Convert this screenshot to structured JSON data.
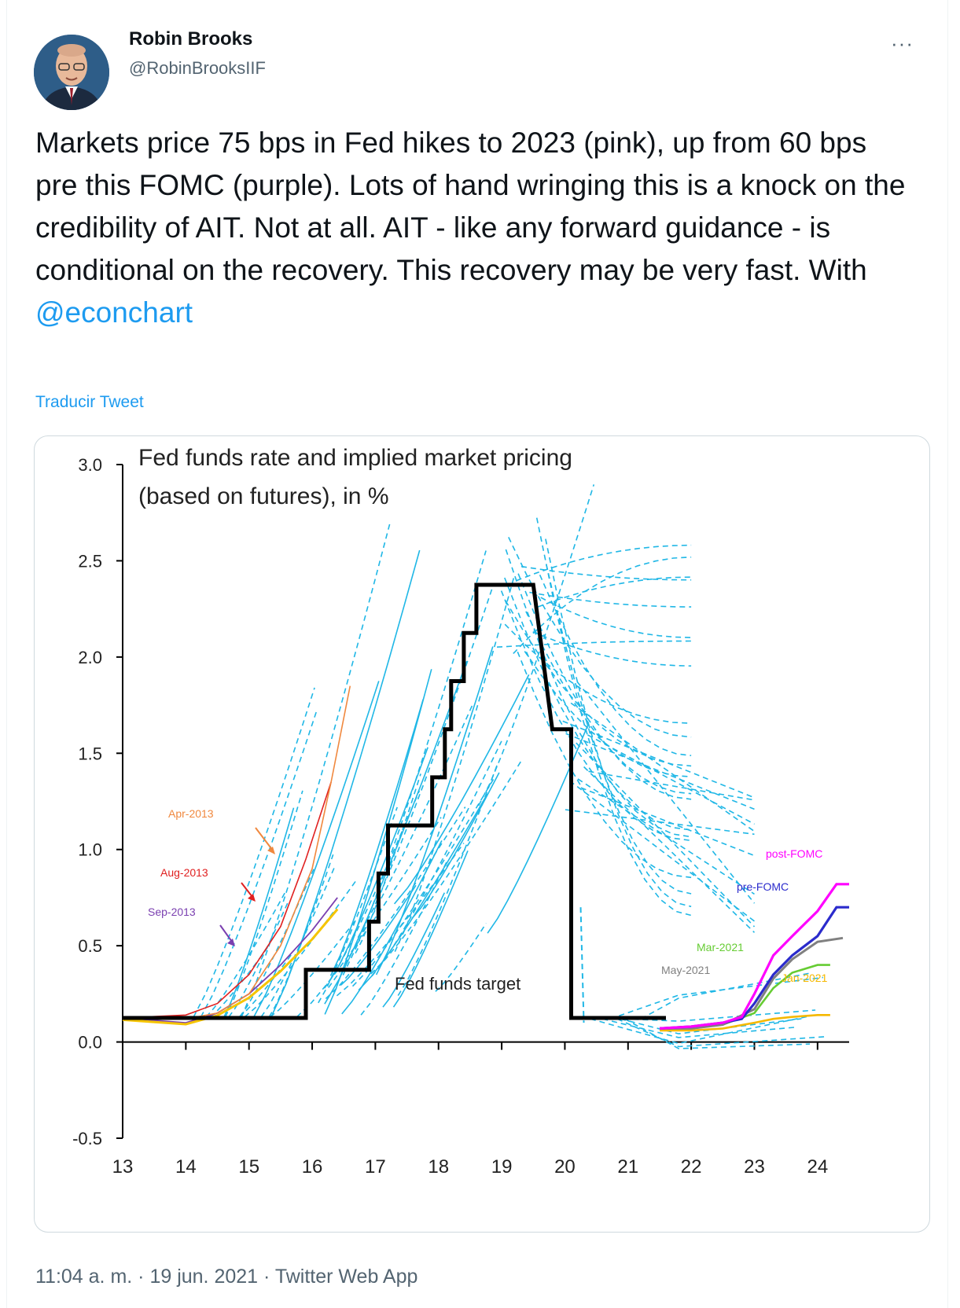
{
  "author": {
    "name": "Robin Brooks",
    "handle": "@RobinBrooksIIF"
  },
  "tweet": {
    "text": "Markets price 75 bps in Fed hikes to 2023 (pink), up from 60 bps pre this FOMC (purple). Lots of hand wringing this is a knock on the credibility of AIT. Not at all. AIT - like any forward guidance - is conditional on the recovery. This recovery may be very fast. With ",
    "mention": "@econchart",
    "translate_label": "Traducir Tweet",
    "more_label": "···"
  },
  "meta": {
    "time": "11:04 a. m.",
    "date": "19 jun. 2021",
    "separator": " · ",
    "app": "Twitter Web App"
  },
  "chart_data": {
    "type": "line",
    "title": "Fed funds rate and implied market pricing",
    "subtitle": "(based on futures), in %",
    "ylim": [
      -0.5,
      3.0
    ],
    "yticks": [
      "3.0",
      "2.5",
      "2.0",
      "1.5",
      "1.0",
      "0.5",
      "0.0",
      "-0.5"
    ],
    "ytick_values": [
      3.0,
      2.5,
      2.0,
      1.5,
      1.0,
      0.5,
      0.0,
      -0.5
    ],
    "xticks": [
      "13",
      "14",
      "15",
      "16",
      "17",
      "18",
      "19",
      "20",
      "21",
      "22",
      "23",
      "24"
    ],
    "xlim": [
      13,
      24.5
    ],
    "annotations": {
      "fed_funds_target": "Fed funds target",
      "apr2013": "Apr-2013",
      "aug2013": "Aug-2013",
      "sep2013": "Sep-2013",
      "post_fomc": "post-FOMC",
      "pre_fomc": "pre-FOMC",
      "mar2021": "Mar-2021",
      "may2021": "May-2021",
      "jan2021": "Jan-2021"
    },
    "colors": {
      "fed_funds_target": "#000000",
      "implied_paths": "#1fb7e6",
      "apr2013": "#f0883e",
      "aug2013": "#e02020",
      "sep2013": "#7a3fb0",
      "post_fomc": "#ff00ff",
      "pre_fomc": "#2b2bcc",
      "mar2021": "#66cc33",
      "may2021": "#808080",
      "jan2021": "#f5b800"
    },
    "series": [
      {
        "name": "Fed funds target",
        "x": [
          13.0,
          15.9,
          15.9,
          16.9,
          16.9,
          17.05,
          17.05,
          17.2,
          17.2,
          17.4,
          17.4,
          17.9,
          17.9,
          18.1,
          18.1,
          18.2,
          18.2,
          18.4,
          18.4,
          18.6,
          18.6,
          18.9,
          18.9,
          19.5,
          19.5,
          19.8,
          19.8,
          20.1,
          20.1,
          20.2,
          20.2,
          21.6
        ],
        "y": [
          0.125,
          0.125,
          0.375,
          0.375,
          0.625,
          0.625,
          0.875,
          0.875,
          1.125,
          1.125,
          1.125,
          1.125,
          1.375,
          1.375,
          1.625,
          1.625,
          1.875,
          1.875,
          2.125,
          2.125,
          2.375,
          2.375,
          2.375,
          2.375,
          2.375,
          1.625,
          1.625,
          1.625,
          0.125,
          0.125,
          0.125,
          0.125
        ]
      },
      {
        "name": "Apr-2013",
        "x": [
          13.0,
          14.0,
          14.5,
          15.0,
          15.5,
          16.0,
          16.3,
          16.6
        ],
        "y": [
          0.125,
          0.12,
          0.15,
          0.25,
          0.5,
          0.9,
          1.35,
          1.85
        ]
      },
      {
        "name": "Aug-2013",
        "x": [
          13.0,
          14.0,
          14.5,
          15.0,
          15.5,
          15.9,
          16.3
        ],
        "y": [
          0.125,
          0.14,
          0.2,
          0.35,
          0.6,
          0.95,
          1.35
        ]
      },
      {
        "name": "Sep-2013",
        "x": [
          13.0,
          14.0,
          14.5,
          15.0,
          15.5,
          16.0,
          16.4
        ],
        "y": [
          0.125,
          0.1,
          0.15,
          0.25,
          0.4,
          0.58,
          0.75
        ]
      },
      {
        "name": "post-FOMC",
        "x": [
          21.5,
          22.0,
          22.5,
          22.8,
          23.0,
          23.3,
          23.6,
          24.0,
          24.3,
          24.5
        ],
        "y": [
          0.07,
          0.08,
          0.1,
          0.13,
          0.25,
          0.45,
          0.55,
          0.68,
          0.82,
          0.82
        ]
      },
      {
        "name": "pre-FOMC",
        "x": [
          21.5,
          22.0,
          22.5,
          22.8,
          23.0,
          23.3,
          23.6,
          24.0,
          24.3,
          24.5
        ],
        "y": [
          0.07,
          0.08,
          0.1,
          0.12,
          0.2,
          0.35,
          0.45,
          0.55,
          0.7,
          0.7
        ]
      },
      {
        "name": "Mar-2021",
        "x": [
          21.5,
          22.0,
          22.5,
          23.0,
          23.3,
          23.6,
          24.0,
          24.2
        ],
        "y": [
          0.07,
          0.07,
          0.09,
          0.15,
          0.28,
          0.36,
          0.4,
          0.4
        ]
      },
      {
        "name": "May-2021",
        "x": [
          21.5,
          22.0,
          22.5,
          23.0,
          23.3,
          23.6,
          24.0,
          24.4
        ],
        "y": [
          0.07,
          0.07,
          0.09,
          0.17,
          0.33,
          0.43,
          0.52,
          0.54
        ]
      },
      {
        "name": "Jan-2021",
        "x": [
          21.5,
          22.0,
          22.5,
          23.0,
          23.3,
          23.6,
          24.0,
          24.2
        ],
        "y": [
          0.06,
          0.06,
          0.07,
          0.1,
          0.12,
          0.13,
          0.14,
          0.14
        ]
      }
    ]
  }
}
